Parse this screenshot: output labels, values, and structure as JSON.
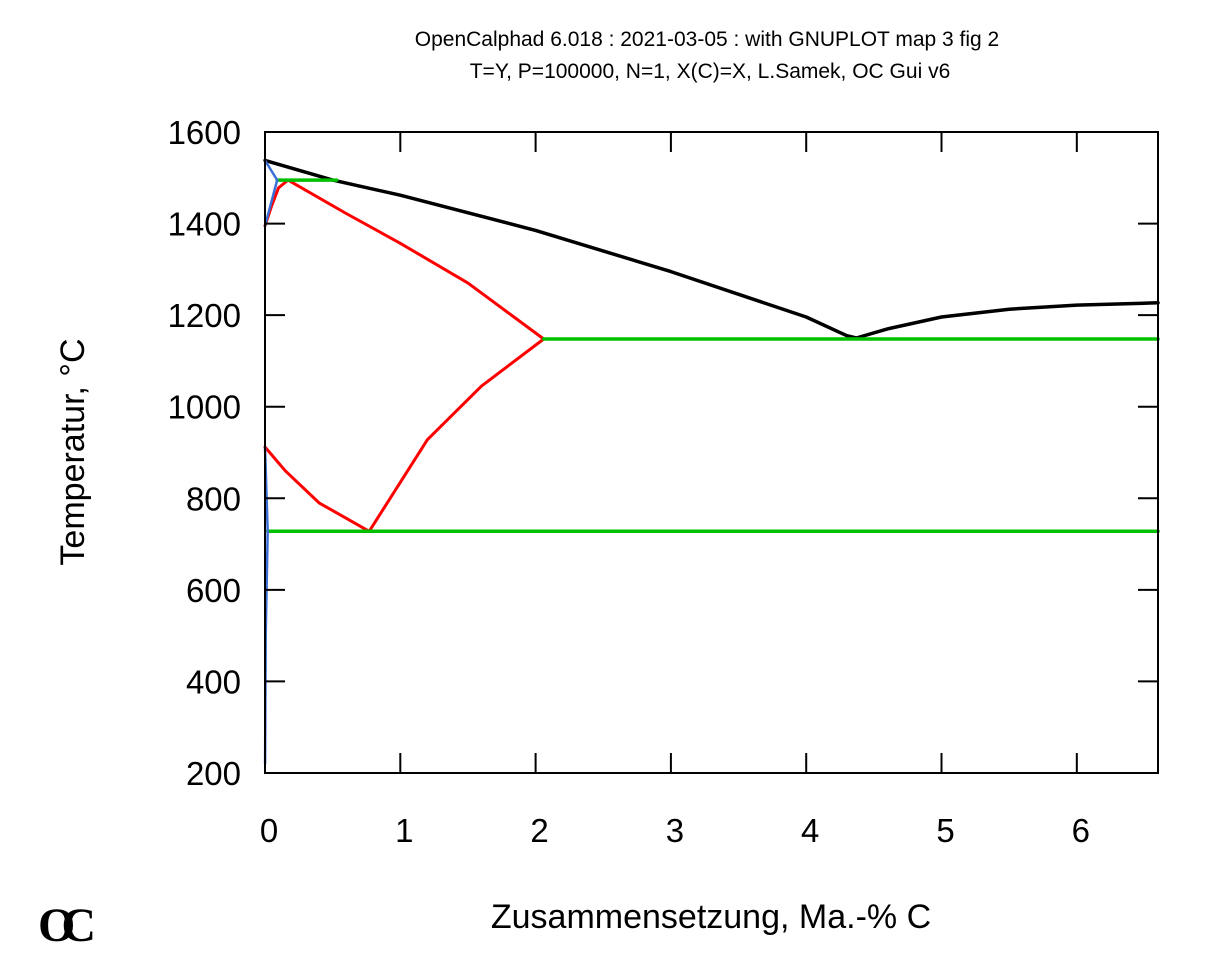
{
  "chart_data": {
    "type": "line",
    "title": "OpenCalphad 6.018 :  2021-03-05 : with GNUPLOT map 3 fig 2",
    "subtitle": "T=Y,  P=100000, N=1, X(C)=X, L.Samek, OC Gui v6",
    "xlabel": "Zusammensetzung, Ma.-% C",
    "ylabel": "Temperatur,  °C",
    "xlim": [
      0,
      6.6
    ],
    "ylim": [
      200,
      1600
    ],
    "xticks": [
      0,
      1,
      2,
      3,
      4,
      5,
      6
    ],
    "yticks": [
      200,
      400,
      600,
      800,
      1000,
      1200,
      1400,
      1600
    ],
    "grid": false,
    "logo": "OC",
    "series": [
      {
        "color": "#000000",
        "width": 3.5,
        "points": [
          [
            0,
            1538
          ],
          [
            0.5,
            1495
          ],
          [
            1.0,
            1462
          ],
          [
            2.0,
            1385
          ],
          [
            3.0,
            1295
          ],
          [
            4.0,
            1196
          ],
          [
            4.3,
            1155
          ],
          [
            4.37,
            1150
          ],
          [
            4.6,
            1170
          ],
          [
            5.0,
            1196
          ],
          [
            5.5,
            1213
          ],
          [
            6.0,
            1222
          ],
          [
            6.6,
            1227
          ]
        ]
      },
      {
        "color": "#000000",
        "width": 3.5,
        "points": [
          [
            0.5,
            1495
          ],
          [
            0.5,
            1495
          ]
        ]
      },
      {
        "color": "#ff0000",
        "width": 3,
        "points": [
          [
            0,
            1395
          ],
          [
            0.05,
            1440
          ],
          [
            0.1,
            1478
          ],
          [
            0.17,
            1495
          ]
        ]
      },
      {
        "color": "#ff0000",
        "width": 3,
        "points": [
          [
            0.17,
            1495
          ],
          [
            0.6,
            1422
          ],
          [
            1.0,
            1357
          ],
          [
            1.5,
            1270
          ],
          [
            2.06,
            1148
          ]
        ]
      },
      {
        "color": "#ff0000",
        "width": 3,
        "points": [
          [
            2.06,
            1148
          ],
          [
            1.6,
            1045
          ],
          [
            1.2,
            928
          ],
          [
            0.77,
            728
          ]
        ]
      },
      {
        "color": "#ff0000",
        "width": 3,
        "points": [
          [
            0,
            912
          ],
          [
            0.15,
            860
          ],
          [
            0.4,
            790
          ],
          [
            0.77,
            728
          ]
        ]
      },
      {
        "color": "#00c000",
        "width": 3.5,
        "points": [
          [
            0.09,
            1495
          ],
          [
            0.53,
            1495
          ]
        ]
      },
      {
        "color": "#00c000",
        "width": 3.5,
        "points": [
          [
            2.06,
            1148
          ],
          [
            6.6,
            1148
          ]
        ]
      },
      {
        "color": "#00c000",
        "width": 3.5,
        "points": [
          [
            0.02,
            728
          ],
          [
            6.6,
            728
          ]
        ]
      },
      {
        "color": "#3b6fd6",
        "width": 2.5,
        "points": [
          [
            0,
            1538
          ],
          [
            0.09,
            1495
          ]
        ]
      },
      {
        "color": "#3b6fd6",
        "width": 2.5,
        "points": [
          [
            0,
            1395
          ],
          [
            0.09,
            1495
          ]
        ]
      },
      {
        "color": "#3b6fd6",
        "width": 2.5,
        "points": [
          [
            0,
            912
          ],
          [
            0.02,
            728
          ]
        ]
      },
      {
        "color": "#3b6fd6",
        "width": 2.5,
        "points": [
          [
            0.02,
            728
          ],
          [
            0.005,
            500
          ],
          [
            0.001,
            220
          ]
        ]
      }
    ]
  }
}
